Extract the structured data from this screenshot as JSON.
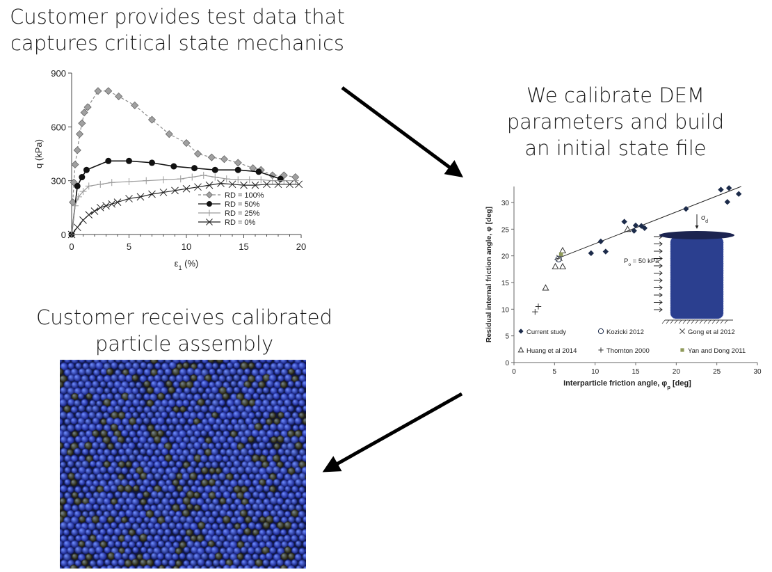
{
  "captions": {
    "step1_line1": "Customer provides test data that",
    "step1_line2": "captures critical state mechanics",
    "step2_line1": "We calibrate DEM",
    "step2_line2": "parameters and build",
    "step2_line3": "an initial state file",
    "step3_line1": "Customer receives calibrated",
    "step3_line2": "particle assembly"
  },
  "chart_data": [
    {
      "type": "line",
      "title": "",
      "xlabel": "ε",
      "xlabel_sub": "1",
      "xlabel_unit": " (%)",
      "ylabel": "q (kPa)",
      "xlim": [
        0,
        20
      ],
      "ylim": [
        0,
        900
      ],
      "xticks": [
        0,
        5,
        10,
        15,
        20
      ],
      "yticks": [
        0,
        300,
        600,
        900
      ],
      "legend_position": "bottom-right",
      "series": [
        {
          "name": "RD = 100%",
          "marker": "diamond",
          "color": "#8a8a8a",
          "dash": "4,3",
          "x": [
            0.1,
            0.2,
            0.3,
            0.5,
            0.7,
            0.9,
            1.1,
            1.4,
            2.3,
            3.2,
            4.1,
            5.5,
            7,
            8.5,
            10,
            11,
            12.2,
            13.3,
            14.5,
            15.8,
            16.5,
            17.5,
            18.5,
            19.5
          ],
          "y": [
            180,
            290,
            390,
            470,
            560,
            620,
            680,
            710,
            800,
            800,
            770,
            720,
            640,
            560,
            510,
            450,
            430,
            420,
            400,
            370,
            360,
            330,
            330,
            320
          ]
        },
        {
          "name": "RD = 50%",
          "marker": "circle",
          "color": "#111111",
          "dash": "",
          "x": [
            0,
            0.5,
            0.9,
            1.3,
            3.2,
            5,
            7,
            8.9,
            10.7,
            12.5,
            14.5,
            16.3,
            18.2
          ],
          "y": [
            0,
            270,
            320,
            360,
            410,
            410,
            400,
            380,
            370,
            360,
            360,
            350,
            310
          ]
        },
        {
          "name": "RD = 25%",
          "marker": "plus",
          "color": "#9a9a9a",
          "dash": "",
          "x": [
            0,
            0.3,
            0.6,
            1,
            1.5,
            2.5,
            3.5,
            5,
            6.5,
            8,
            9.5,
            10.5,
            11.5,
            12.5,
            13.5,
            14.5,
            15.5,
            16.5,
            17.5,
            18.5,
            19.5
          ],
          "y": [
            0,
            160,
            210,
            240,
            270,
            280,
            290,
            295,
            300,
            305,
            310,
            320,
            330,
            320,
            310,
            305,
            305,
            305,
            300,
            300,
            300
          ]
        },
        {
          "name": "RD = 0%",
          "marker": "x",
          "color": "#222222",
          "dash": "",
          "x": [
            0,
            0.5,
            1,
            1.5,
            2,
            2.5,
            3,
            3.5,
            4,
            5,
            6,
            7,
            8,
            9,
            10,
            11,
            12,
            13,
            14,
            15,
            16,
            17,
            18,
            19,
            19.8
          ],
          "y": [
            0,
            40,
            80,
            110,
            130,
            150,
            160,
            170,
            180,
            200,
            210,
            225,
            235,
            245,
            255,
            265,
            275,
            285,
            280,
            275,
            275,
            280,
            280,
            280,
            280
          ]
        }
      ]
    },
    {
      "type": "scatter",
      "title": "",
      "xlabel": "Interparticle friction angle, φ",
      "xlabel_sub": "p",
      "xlabel_unit": " [deg]",
      "ylabel": "Residual internal friction angle, φ [deg]",
      "xlim": [
        0,
        30
      ],
      "ylim": [
        0,
        33
      ],
      "xticks": [
        0,
        5,
        10,
        15,
        20,
        25,
        30
      ],
      "yticks": [
        0,
        5,
        10,
        15,
        20,
        25,
        30
      ],
      "trendline": {
        "x": [
          5,
          28
        ],
        "y": [
          19.3,
          33
        ]
      },
      "legend_position": "bottom",
      "inset": {
        "pressure_label": "P",
        "pressure_sub": "o",
        "pressure_unit": " = 50 kPa",
        "stress_label": "σ",
        "stress_sub": "d"
      },
      "series": [
        {
          "name": "Current study",
          "marker": "diamond-filled",
          "color": "#1c2b4a",
          "x": [
            9.5,
            10.7,
            11.3,
            13.6,
            14.8,
            15.0,
            15.7,
            16.1,
            21.2,
            25.5,
            26.3,
            26.5,
            27.7
          ],
          "y": [
            20.5,
            22.7,
            20.8,
            26.4,
            24.7,
            25.7,
            25.6,
            25.2,
            28.8,
            32.4,
            30.1,
            32.7,
            31.6
          ]
        },
        {
          "name": "Kozicki 2012",
          "marker": "circle-open",
          "color": "#1c2b4a",
          "x": [
            5.5
          ],
          "y": [
            19.4
          ]
        },
        {
          "name": "Gong et al 2012",
          "marker": "x",
          "color": "#444444",
          "x": [
            5.6
          ],
          "y": [
            19.6
          ]
        },
        {
          "name": "Huang et al 2014",
          "marker": "triangle-open",
          "color": "#333333",
          "x": [
            3.9,
            5.1,
            6.0,
            6.0,
            14.0
          ],
          "y": [
            14.0,
            18.0,
            18.0,
            21.0,
            25.0
          ]
        },
        {
          "name": "Thornton 2000",
          "marker": "plus",
          "color": "#333333",
          "x": [
            2.6,
            3.0
          ],
          "y": [
            9.5,
            10.5
          ]
        },
        {
          "name": "Yan and Dong 2011",
          "marker": "square",
          "color": "#8f9a5a",
          "x": [
            5.8
          ],
          "y": [
            20.3
          ]
        }
      ]
    }
  ]
}
